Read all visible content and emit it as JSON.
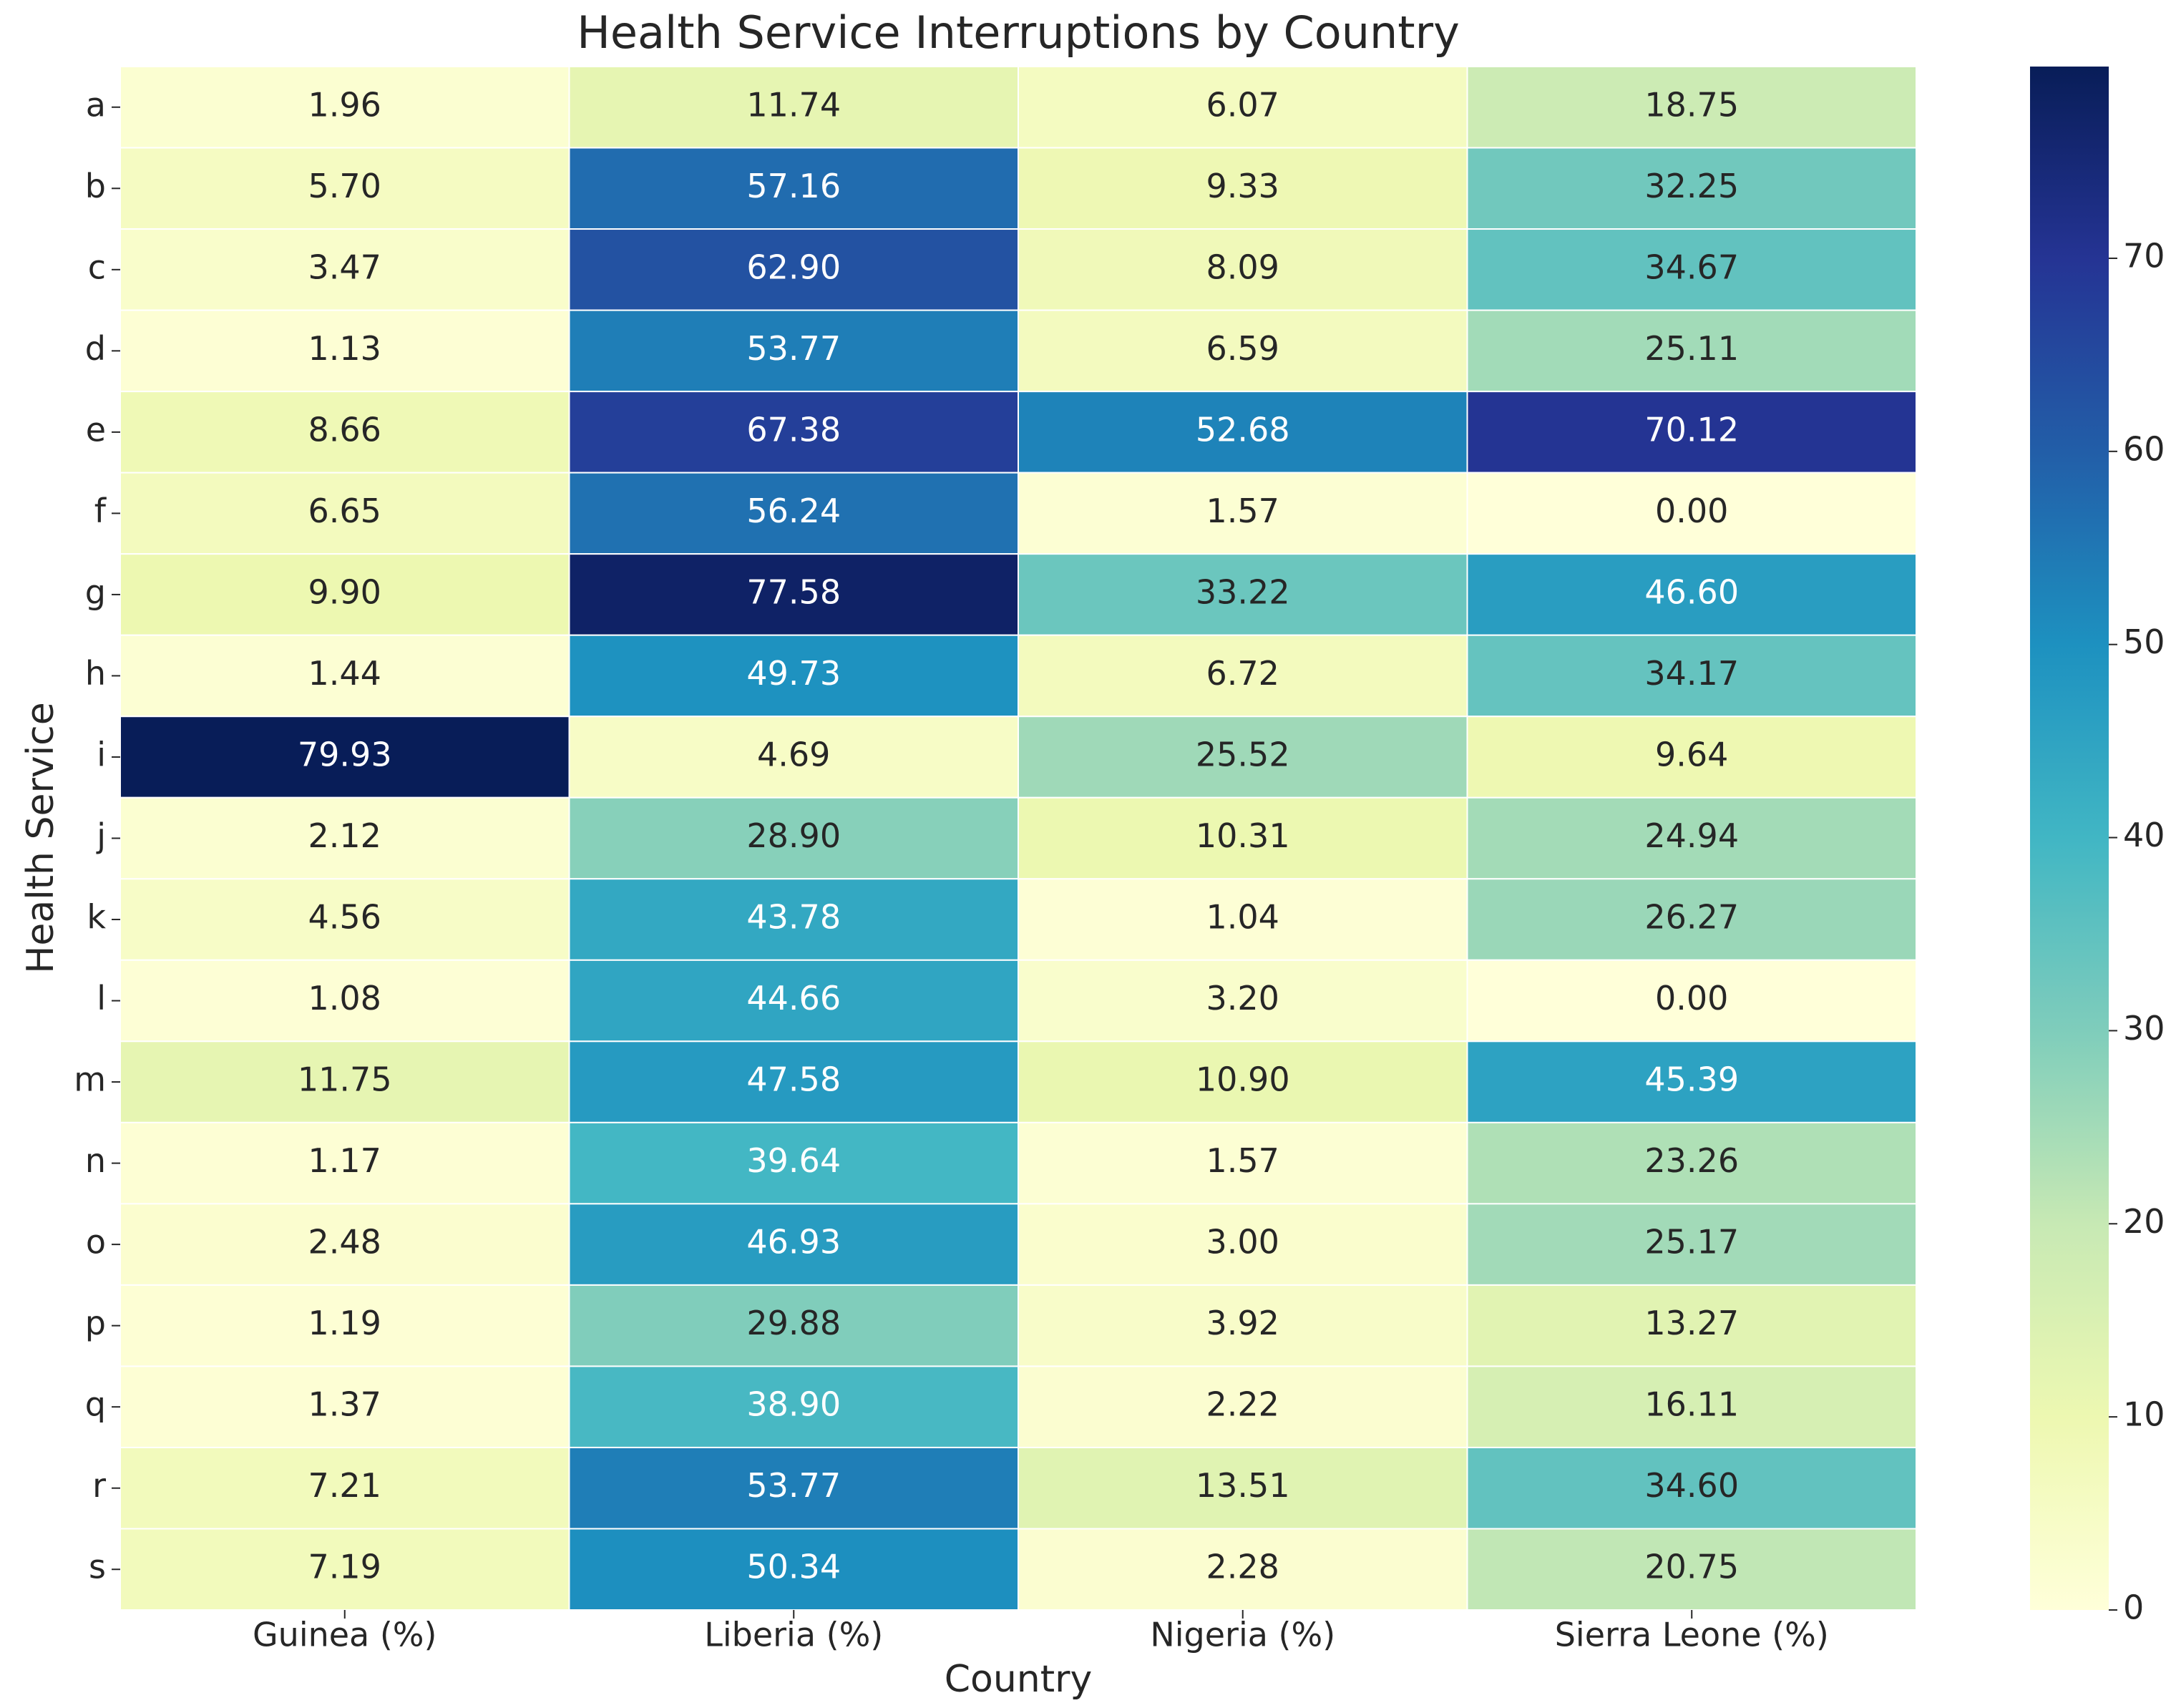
{
  "chart_data": {
    "type": "heatmap",
    "title": "Health Service Interruptions by Country",
    "xlabel": "Country",
    "ylabel": "Health Service",
    "x": [
      "Guinea (%)",
      "Liberia (%)",
      "Nigeria (%)",
      "Sierra Leone (%)"
    ],
    "y": [
      "a",
      "b",
      "c",
      "d",
      "e",
      "f",
      "g",
      "h",
      "i",
      "j",
      "k",
      "l",
      "m",
      "n",
      "o",
      "p",
      "q",
      "r",
      "s"
    ],
    "values": [
      [
        1.96,
        11.74,
        6.07,
        18.75
      ],
      [
        5.7,
        57.16,
        9.33,
        32.25
      ],
      [
        3.47,
        62.9,
        8.09,
        34.67
      ],
      [
        1.13,
        53.77,
        6.59,
        25.11
      ],
      [
        8.66,
        67.38,
        52.68,
        70.12
      ],
      [
        6.65,
        56.24,
        1.57,
        0.0
      ],
      [
        9.9,
        77.58,
        33.22,
        46.6
      ],
      [
        1.44,
        49.73,
        6.72,
        34.17
      ],
      [
        79.93,
        4.69,
        25.52,
        9.64
      ],
      [
        2.12,
        28.9,
        10.31,
        24.94
      ],
      [
        4.56,
        43.78,
        1.04,
        26.27
      ],
      [
        1.08,
        44.66,
        3.2,
        0.0
      ],
      [
        11.75,
        47.58,
        10.9,
        45.39
      ],
      [
        1.17,
        39.64,
        1.57,
        23.26
      ],
      [
        2.48,
        46.93,
        3.0,
        25.17
      ],
      [
        1.19,
        29.88,
        3.92,
        13.27
      ],
      [
        1.37,
        38.9,
        2.22,
        16.11
      ],
      [
        7.21,
        53.77,
        13.51,
        34.6
      ],
      [
        7.19,
        50.34,
        2.28,
        20.75
      ]
    ],
    "value_labels": [
      [
        "1.96",
        "11.74",
        "6.07",
        "18.75"
      ],
      [
        "5.70",
        "57.16",
        "9.33",
        "32.25"
      ],
      [
        "3.47",
        "62.90",
        "8.09",
        "34.67"
      ],
      [
        "1.13",
        "53.77",
        "6.59",
        "25.11"
      ],
      [
        "8.66",
        "67.38",
        "52.68",
        "70.12"
      ],
      [
        "6.65",
        "56.24",
        "1.57",
        "0.00"
      ],
      [
        "9.90",
        "77.58",
        "33.22",
        "46.60"
      ],
      [
        "1.44",
        "49.73",
        "6.72",
        "34.17"
      ],
      [
        "79.93",
        "4.69",
        "25.52",
        "9.64"
      ],
      [
        "2.12",
        "28.90",
        "10.31",
        "24.94"
      ],
      [
        "4.56",
        "43.78",
        "1.04",
        "26.27"
      ],
      [
        "1.08",
        "44.66",
        "3.20",
        "0.00"
      ],
      [
        "11.75",
        "47.58",
        "10.90",
        "45.39"
      ],
      [
        "1.17",
        "39.64",
        "1.57",
        "23.26"
      ],
      [
        "2.48",
        "46.93",
        "3.00",
        "25.17"
      ],
      [
        "1.19",
        "29.88",
        "3.92",
        "13.27"
      ],
      [
        "1.37",
        "38.90",
        "2.22",
        "16.11"
      ],
      [
        "7.21",
        "53.77",
        "13.51",
        "34.60"
      ],
      [
        "7.19",
        "50.34",
        "2.28",
        "20.75"
      ]
    ],
    "colormap": "YlGnBu",
    "zlim": [
      0,
      79.93
    ],
    "zticks": [
      0,
      10,
      20,
      30,
      40,
      50,
      60,
      70
    ]
  }
}
